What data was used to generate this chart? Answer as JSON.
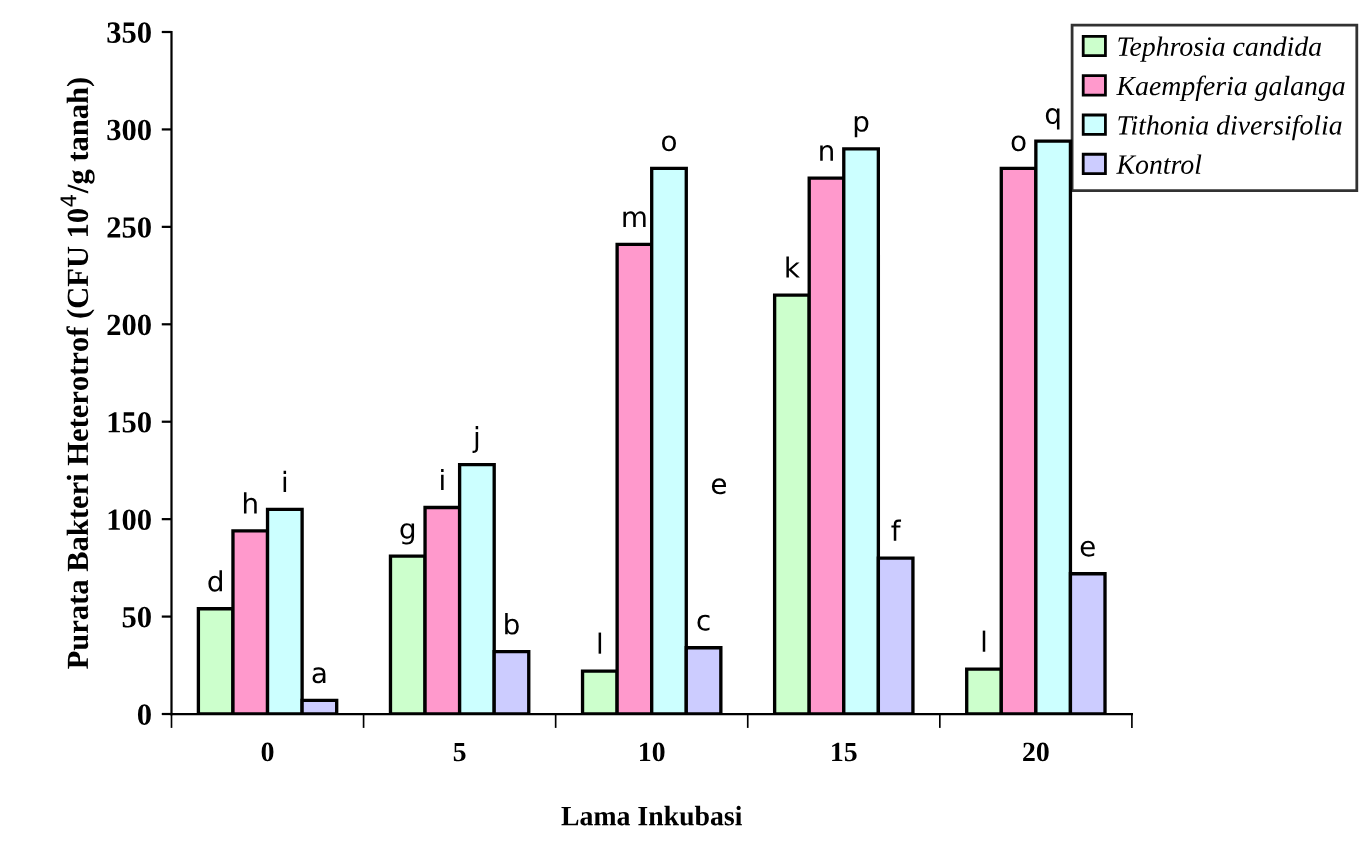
{
  "chart_data": {
    "type": "bar",
    "xlabel": "Lama Inkubasi",
    "ylabel": "Purata Bakteri Heterotrof (CFU 10$^{4}$/g tanah)",
    "categories": [
      "0",
      "5",
      "10",
      "15",
      "20"
    ],
    "series": [
      {
        "name": "Tephrosia candida",
        "color": "#ccffcc",
        "values": [
          54,
          81,
          22,
          215,
          23
        ],
        "value_labels": [
          "d",
          "g",
          "l",
          "k",
          "l"
        ]
      },
      {
        "name": "Kaempferia galanga",
        "color": "#ff99cc",
        "values": [
          94,
          106,
          241,
          275,
          280
        ],
        "value_labels": [
          "h",
          "i",
          "m",
          "n",
          "o"
        ]
      },
      {
        "name": "Tithonia diversifolia",
        "color": "#ccffff",
        "values": [
          105,
          128,
          280,
          290,
          294
        ],
        "value_labels": [
          "i",
          "j",
          "o",
          "p",
          "q"
        ]
      },
      {
        "name": "Kontrol",
        "color": "#ccccff",
        "values": [
          7,
          32,
          34,
          80,
          72
        ],
        "value_labels": [
          "a",
          "b",
          "c",
          "f",
          "e"
        ]
      }
    ],
    "annotations": [
      {
        "text": "e",
        "x": "10",
        "y": 110
      }
    ],
    "ylim": [
      0,
      350
    ],
    "yticks": [
      0,
      50,
      100,
      150,
      200,
      250,
      300,
      350
    ],
    "grid": false,
    "legend": "top right"
  }
}
